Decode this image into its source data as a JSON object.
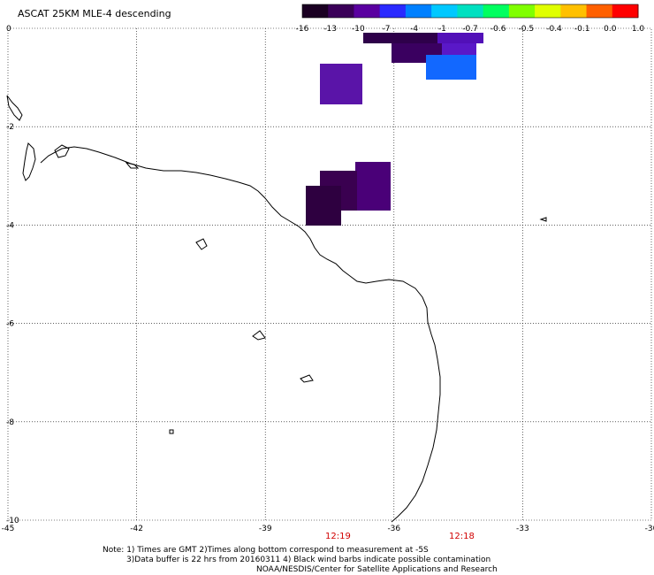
{
  "title": "ASCAT 25KM MLE-4 descending",
  "colorbar": {
    "labels": [
      "-16",
      "-13",
      "-10",
      "-7",
      "-4",
      "-1",
      "-0.7",
      "-0.6",
      "-0.5",
      "-0.4",
      "-0.1",
      "0.0",
      "1.0"
    ],
    "colors": [
      "#1a0022",
      "#3a0058",
      "#5a00a0",
      "#2a2aff",
      "#0080ff",
      "#00c8ff",
      "#00e0c0",
      "#00ff60",
      "#80ff00",
      "#e0ff00",
      "#ffc000",
      "#ff6000",
      "#ff0000"
    ]
  },
  "x_axis": {
    "labels": [
      "-45",
      "-42",
      "-39",
      "-36",
      "-33",
      "-30"
    ]
  },
  "y_axis": {
    "labels": [
      "0",
      "-2",
      "-4",
      "-6",
      "-8",
      "-10"
    ]
  },
  "time_labels": [
    "12:19",
    "12:18"
  ],
  "notes": {
    "line1": "Note: 1) Times are GMT 2)Times along bottom correspond to measurement at -5S",
    "line2": "3)Data buffer is 22 hrs from 20160311 4) Black wind barbs indicate possible contamination",
    "line3": "NOAA/NESDIS/Center for Satellite Applications and Research"
  },
  "swath_cells": [
    {
      "lon": -36.6,
      "lat": 0.0,
      "color": "#2a0040"
    },
    {
      "lon": -35.8,
      "lat": 0.0,
      "color": "#4a0090"
    },
    {
      "lon": -35.0,
      "lat": 0.0,
      "color": "#6a10d0"
    },
    {
      "lon": -36.2,
      "lat": -0.4,
      "color": "#2a0040"
    },
    {
      "lon": -35.0,
      "lat": -0.6,
      "color": "#1060ff"
    },
    {
      "lon": -37.7,
      "lat": -1.1,
      "color": "#5a14a8"
    },
    {
      "lon": -37.7,
      "lat": -3.4,
      "color": "#3a0050"
    },
    {
      "lon": -37.0,
      "lat": -3.2,
      "color": "#4a0070"
    }
  ]
}
